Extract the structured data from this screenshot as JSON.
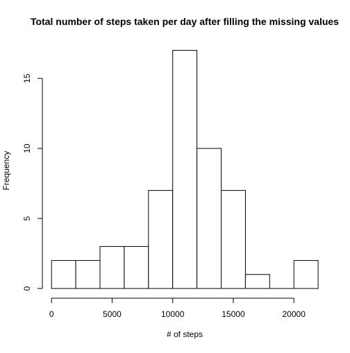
{
  "chart_data": {
    "type": "bar",
    "title": "Total number of steps taken per day after filling the missing values",
    "xlabel": "# of steps",
    "ylabel": "Frequency",
    "bins": [
      {
        "start": 0,
        "end": 2000,
        "count": 2
      },
      {
        "start": 2000,
        "end": 4000,
        "count": 2
      },
      {
        "start": 4000,
        "end": 6000,
        "count": 3
      },
      {
        "start": 6000,
        "end": 8000,
        "count": 3
      },
      {
        "start": 8000,
        "end": 10000,
        "count": 7
      },
      {
        "start": 10000,
        "end": 12000,
        "count": 17
      },
      {
        "start": 12000,
        "end": 14000,
        "count": 10
      },
      {
        "start": 14000,
        "end": 16000,
        "count": 7
      },
      {
        "start": 16000,
        "end": 18000,
        "count": 1
      },
      {
        "start": 18000,
        "end": 20000,
        "count": 0
      },
      {
        "start": 20000,
        "end": 22000,
        "count": 2
      }
    ],
    "xlim": [
      0,
      22000
    ],
    "ylim": [
      0,
      17
    ],
    "x_ticks": [
      0,
      5000,
      10000,
      15000,
      20000
    ],
    "x_tick_labels": [
      "0",
      "5000",
      "10000",
      "15000",
      "20000"
    ],
    "y_ticks": [
      0,
      5,
      10,
      15
    ],
    "y_tick_labels": [
      "0",
      "5",
      "10",
      "15"
    ],
    "grid": false,
    "legend": "none",
    "bar_fill": "#ffffff",
    "bar_stroke": "#000000"
  }
}
